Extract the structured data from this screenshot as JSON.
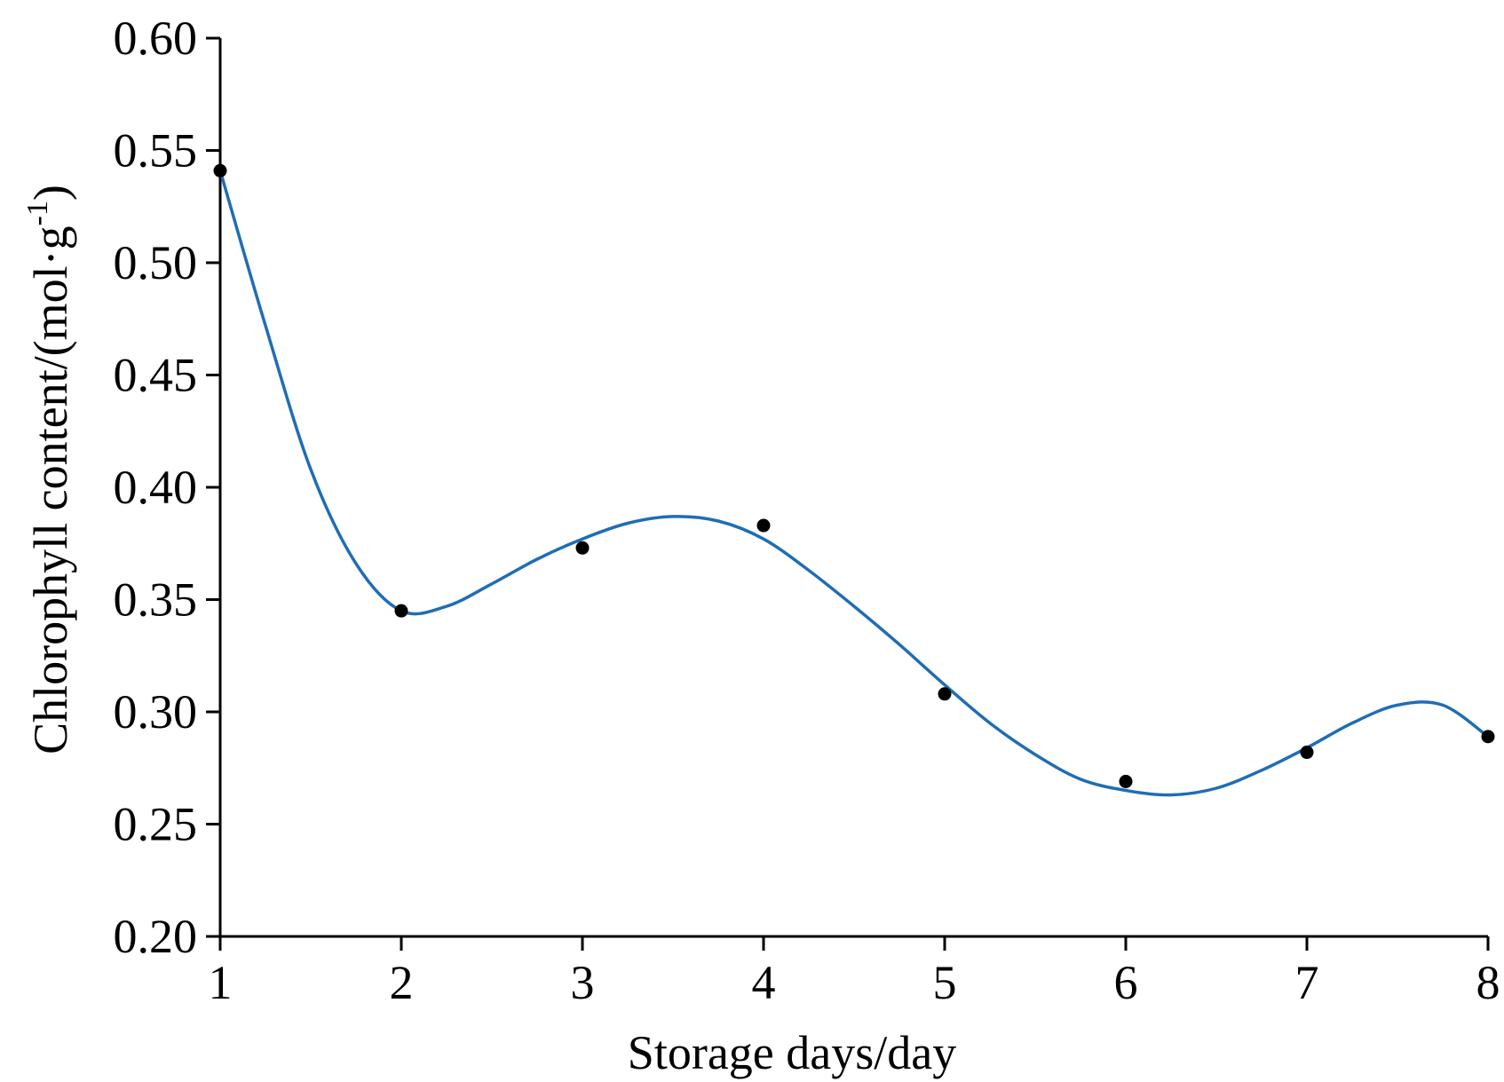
{
  "chart_data": {
    "type": "scatter",
    "title": "",
    "xlabel": "Storage days/day",
    "ylabel_main": "Chlorophyll content/(mol·g",
    "ylabel_sup": "-1",
    "ylabel_close": ")",
    "xlim": [
      1,
      8
    ],
    "ylim": [
      0.2,
      0.6
    ],
    "x_ticks": [
      1,
      2,
      3,
      4,
      5,
      6,
      7,
      8
    ],
    "x_tick_labels": [
      "1",
      "2",
      "3",
      "4",
      "5",
      "6",
      "7",
      "8"
    ],
    "y_ticks": [
      0.2,
      0.25,
      0.3,
      0.35,
      0.4,
      0.45,
      0.5,
      0.55,
      0.6
    ],
    "y_tick_labels": [
      "0.20",
      "0.25",
      "0.30",
      "0.35",
      "0.40",
      "0.45",
      "0.50",
      "0.55",
      "0.60"
    ],
    "grid": false,
    "series": [
      {
        "kind": "points",
        "color": "#000000",
        "x": [
          1,
          2,
          3,
          4,
          5,
          6,
          7,
          8
        ],
        "y": [
          0.541,
          0.345,
          0.373,
          0.383,
          0.308,
          0.269,
          0.282,
          0.289
        ]
      },
      {
        "kind": "fit-curve",
        "color": "#1f6db5",
        "x": [
          1.0,
          1.25,
          1.5,
          1.75,
          2.0,
          2.25,
          2.5,
          2.75,
          3.0,
          3.25,
          3.5,
          3.75,
          4.0,
          4.25,
          4.5,
          4.75,
          5.0,
          5.25,
          5.5,
          5.75,
          6.0,
          6.25,
          6.5,
          6.75,
          7.0,
          7.25,
          7.5,
          7.75,
          8.0
        ],
        "y": [
          0.541,
          0.472,
          0.408,
          0.366,
          0.345,
          0.347,
          0.357,
          0.368,
          0.377,
          0.384,
          0.387,
          0.385,
          0.377,
          0.363,
          0.347,
          0.33,
          0.312,
          0.295,
          0.281,
          0.27,
          0.265,
          0.263,
          0.266,
          0.274,
          0.284,
          0.295,
          0.303,
          0.303,
          0.289
        ]
      }
    ]
  }
}
